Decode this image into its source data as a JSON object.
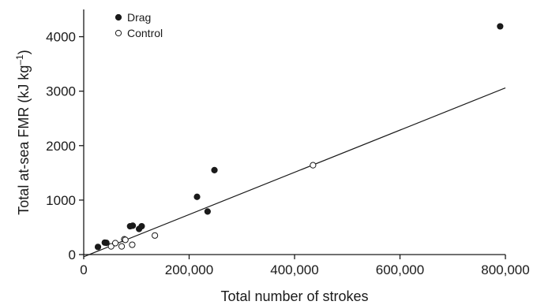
{
  "chart_data": {
    "type": "scatter",
    "xlabel": "Total number of strokes",
    "ylabel": "Total at-sea FMR (kJ kg",
    "ylabel_sup": "–1",
    "ylabel_close": ")",
    "xlim": [
      0,
      800000
    ],
    "ylim": [
      0,
      4500
    ],
    "x_ticks": [
      0,
      200000,
      400000,
      600000,
      800000
    ],
    "x_tick_labels": [
      "0",
      "200,000",
      "400,000",
      "600,000",
      "800,000"
    ],
    "y_ticks": [
      0,
      1000,
      2000,
      3000,
      4000
    ],
    "y_tick_labels": [
      "0",
      "1000",
      "2000",
      "3000",
      "4000"
    ],
    "grid": false,
    "legend_position": "top-left",
    "series": [
      {
        "name": "Drag",
        "marker": "filled-circle",
        "points": [
          [
            27000,
            140
          ],
          [
            40000,
            220
          ],
          [
            43000,
            215
          ],
          [
            88000,
            520
          ],
          [
            93000,
            530
          ],
          [
            105000,
            470
          ],
          [
            110000,
            520
          ],
          [
            215000,
            1060
          ],
          [
            235000,
            790
          ],
          [
            248000,
            1550
          ],
          [
            790000,
            4190
          ]
        ]
      },
      {
        "name": "Control",
        "marker": "open-circle",
        "points": [
          [
            52000,
            150
          ],
          [
            60000,
            210
          ],
          [
            72000,
            150
          ],
          [
            77000,
            280
          ],
          [
            79000,
            270
          ],
          [
            92000,
            180
          ],
          [
            135000,
            350
          ],
          [
            435000,
            1640
          ]
        ]
      }
    ],
    "regression_line": {
      "x": [
        0,
        800000
      ],
      "y": [
        -40,
        3060
      ]
    }
  }
}
